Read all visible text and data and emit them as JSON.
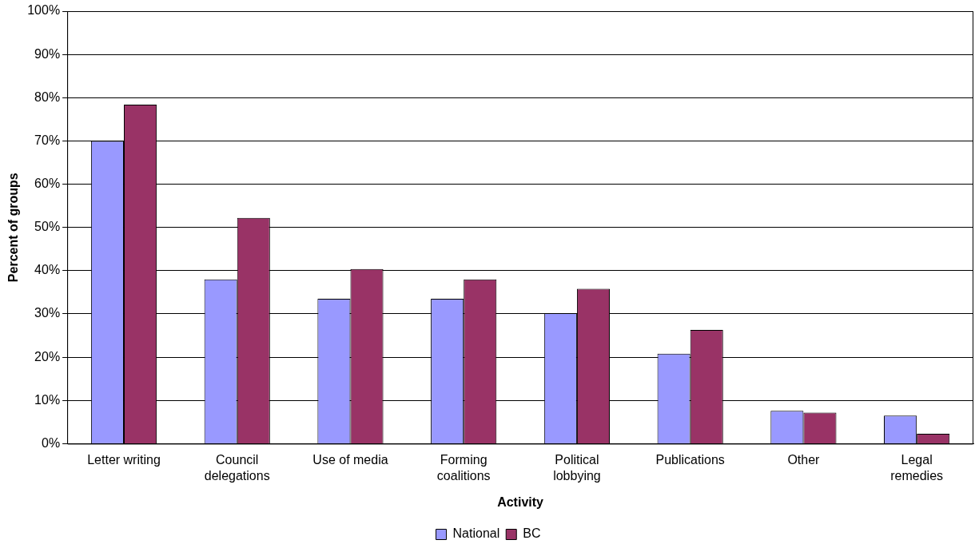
{
  "chart_data": {
    "type": "bar",
    "xlabel": "Activity",
    "ylabel": "Percent of groups",
    "categories": [
      "Letter writing",
      "Council delegations",
      "Use of media",
      "Forming coalitions",
      "Political lobbying",
      "Publications",
      "Other",
      "Legal remedies"
    ],
    "series": [
      {
        "name": "National",
        "color": "#9999ff",
        "values": [
          70,
          38,
          33.5,
          33.5,
          30.2,
          20.8,
          7.6,
          6.5
        ]
      },
      {
        "name": "BC",
        "color": "#993366",
        "values": [
          78.4,
          52.2,
          40.4,
          38,
          35.8,
          26.3,
          7.2,
          2.3
        ]
      }
    ],
    "ylim": [
      0,
      100
    ],
    "yticks": [
      {
        "value": 0,
        "label": "0%"
      },
      {
        "value": 10,
        "label": "10%"
      },
      {
        "value": 20,
        "label": "20%"
      },
      {
        "value": 30,
        "label": "30%"
      },
      {
        "value": 40,
        "label": "40%"
      },
      {
        "value": 50,
        "label": "50%"
      },
      {
        "value": 60,
        "label": "60%"
      },
      {
        "value": 70,
        "label": "70%"
      },
      {
        "value": 80,
        "label": "80%"
      },
      {
        "value": 90,
        "label": "90%"
      },
      {
        "value": 100,
        "label": "100%"
      }
    ],
    "grid": "y",
    "legend": "bottom"
  }
}
